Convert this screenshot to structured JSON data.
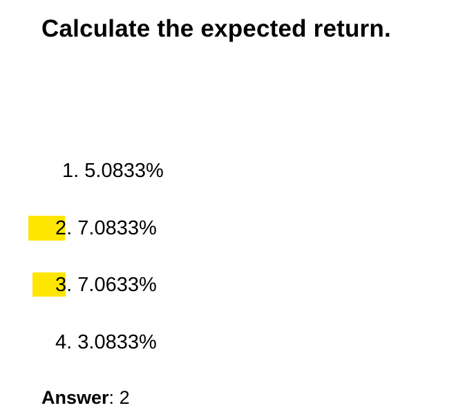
{
  "question": {
    "title": "Calculate the expected return."
  },
  "options": [
    {
      "number": "1",
      "value": "5.0833%",
      "highlighted": false
    },
    {
      "number": "2",
      "value": "7.0833%",
      "highlighted": true
    },
    {
      "number": "3",
      "value": "7.0633%",
      "highlighted": true
    },
    {
      "number": "4",
      "value": "3.0833%",
      "highlighted": false
    }
  ],
  "answer": {
    "label": "Answer",
    "separator": ": ",
    "value": "2"
  },
  "colors": {
    "highlight": "#ffe600",
    "text": "#000000",
    "background": "#ffffff"
  }
}
